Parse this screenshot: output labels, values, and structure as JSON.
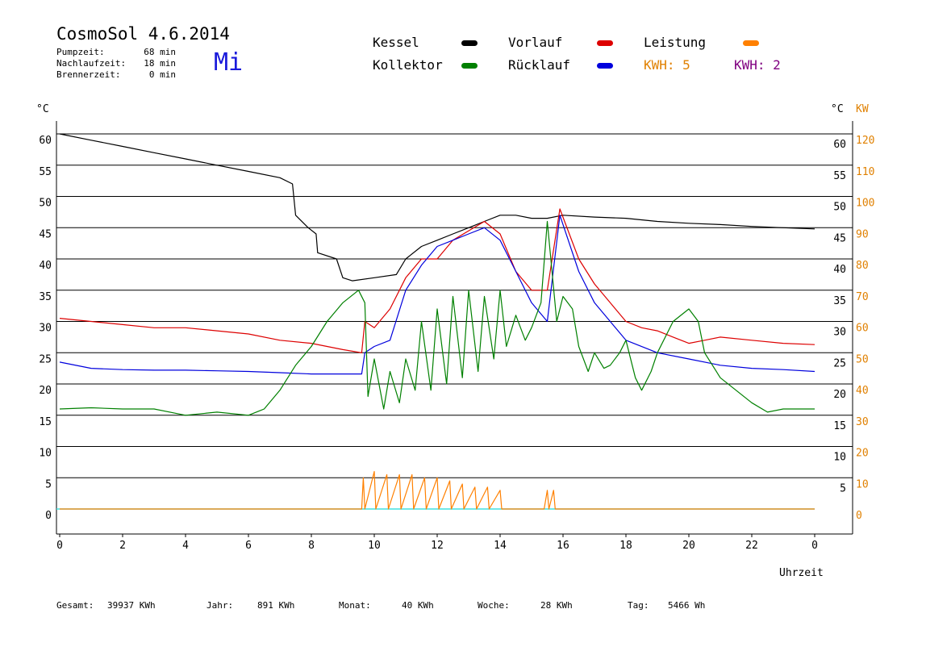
{
  "header": {
    "title": "CosmoSol 4.6.2014",
    "day": "Mi",
    "info": [
      {
        "label": "Pumpzeit:",
        "value": "68 min"
      },
      {
        "label": "Nachlaufzeit:",
        "value": "18 min"
      },
      {
        "label": "Brennerzeit:",
        "value": "0 min"
      }
    ]
  },
  "legend": {
    "kessel": {
      "label": "Kessel",
      "color": "#000000"
    },
    "vorlauf": {
      "label": "Vorlauf",
      "color": "#dd0000"
    },
    "leistung": {
      "label": "Leistung",
      "color": "#ff8000"
    },
    "kollektor": {
      "label": "Kollektor",
      "color": "#008000"
    },
    "ruecklauf": {
      "label": "Rücklauf",
      "color": "#0000dd"
    },
    "kwh1": {
      "label": "KWH: 5",
      "color": "#e08000"
    },
    "kwh2": {
      "label": "KWH: 2",
      "color": "#800080"
    }
  },
  "footer": {
    "gesamt": {
      "label": "Gesamt:",
      "value": "39937 KWh"
    },
    "jahr": {
      "label": "Jahr:",
      "value": "891 KWh"
    },
    "monat": {
      "label": "Monat:",
      "value": "40 KWh"
    },
    "woche": {
      "label": "Woche:",
      "value": "28 KWh"
    },
    "tag": {
      "label": "Tag:",
      "value": "5466 Wh"
    }
  },
  "chart_data": {
    "type": "line",
    "xlabel": "Uhrzeit",
    "ylabel_left": "°C",
    "ylabel_right_temp": "°C",
    "ylabel_right_power": "KW",
    "xlim": [
      0,
      24
    ],
    "ylim": [
      -4,
      65
    ],
    "x_ticks": [
      "0",
      "2",
      "4",
      "6",
      "8",
      "10",
      "12",
      "14",
      "16",
      "18",
      "20",
      "22",
      "0"
    ],
    "y_ticks_left": [
      "60",
      "55",
      "50",
      "45",
      "40",
      "35",
      "30",
      "25",
      "20",
      "15",
      "10",
      "5",
      "0"
    ],
    "y_ticks_right_temp": [
      "60",
      "55",
      "50",
      "45",
      "40",
      "35",
      "30",
      "25",
      "20",
      "15",
      "10",
      "5"
    ],
    "y_ticks_right_power": [
      "120",
      "110",
      "100",
      "90",
      "80",
      "70",
      "60",
      "50",
      "40",
      "30",
      "20",
      "10",
      "0"
    ],
    "gridlines_y": [
      60,
      55,
      50,
      45,
      40,
      35,
      30,
      25,
      20,
      15,
      10,
      5
    ],
    "zero_line_color": "#40e0e0",
    "series": [
      {
        "name": "Kessel",
        "color": "#000000",
        "points": [
          [
            0,
            60
          ],
          [
            1,
            59
          ],
          [
            2,
            58
          ],
          [
            3,
            57
          ],
          [
            4,
            56
          ],
          [
            5,
            55
          ],
          [
            6,
            54
          ],
          [
            7,
            53
          ],
          [
            7.4,
            52
          ],
          [
            7.5,
            47
          ],
          [
            7.9,
            45
          ],
          [
            8.15,
            44
          ],
          [
            8.2,
            41
          ],
          [
            8.8,
            40
          ],
          [
            9.0,
            37
          ],
          [
            9.3,
            36.5
          ],
          [
            10,
            37
          ],
          [
            10.7,
            37.5
          ],
          [
            11,
            40
          ],
          [
            11.5,
            42
          ],
          [
            12,
            43
          ],
          [
            12.5,
            44
          ],
          [
            13,
            45
          ],
          [
            13.5,
            46
          ],
          [
            14,
            47
          ],
          [
            14.5,
            47
          ],
          [
            15,
            46.5
          ],
          [
            15.5,
            46.5
          ],
          [
            16,
            47
          ],
          [
            17,
            46.7
          ],
          [
            18,
            46.5
          ],
          [
            19,
            46
          ],
          [
            20,
            45.7
          ],
          [
            21,
            45.5
          ],
          [
            22,
            45.2
          ],
          [
            23,
            45
          ],
          [
            24,
            44.8
          ]
        ]
      },
      {
        "name": "Vorlauf",
        "color": "#dd0000",
        "points": [
          [
            0,
            30.5
          ],
          [
            1,
            30
          ],
          [
            2,
            29.5
          ],
          [
            3,
            29
          ],
          [
            4,
            29
          ],
          [
            5,
            28.5
          ],
          [
            6,
            28
          ],
          [
            7,
            27
          ],
          [
            8,
            26.5
          ],
          [
            9,
            25.5
          ],
          [
            9.6,
            25
          ],
          [
            9.7,
            30
          ],
          [
            10,
            29
          ],
          [
            10.5,
            32
          ],
          [
            11,
            37
          ],
          [
            11.5,
            40
          ],
          [
            12,
            40
          ],
          [
            12.5,
            43
          ],
          [
            13,
            44.5
          ],
          [
            13.5,
            46
          ],
          [
            14,
            44
          ],
          [
            14.5,
            38
          ],
          [
            15,
            35
          ],
          [
            15.5,
            35
          ],
          [
            15.9,
            48
          ],
          [
            16.5,
            40
          ],
          [
            17,
            36
          ],
          [
            17.5,
            33
          ],
          [
            18,
            30
          ],
          [
            18.5,
            29
          ],
          [
            19,
            28.5
          ],
          [
            19.5,
            27.5
          ],
          [
            20,
            26.5
          ],
          [
            20.5,
            27
          ],
          [
            21,
            27.5
          ],
          [
            22,
            27
          ],
          [
            23,
            26.5
          ],
          [
            24,
            26.3
          ]
        ]
      },
      {
        "name": "Rücklauf",
        "color": "#0000dd",
        "points": [
          [
            0,
            23.5
          ],
          [
            1,
            22.5
          ],
          [
            2,
            22.3
          ],
          [
            3,
            22.2
          ],
          [
            4,
            22.2
          ],
          [
            5,
            22.1
          ],
          [
            6,
            22
          ],
          [
            7,
            21.8
          ],
          [
            8,
            21.6
          ],
          [
            9,
            21.6
          ],
          [
            9.6,
            21.6
          ],
          [
            9.7,
            25
          ],
          [
            10,
            26
          ],
          [
            10.5,
            27
          ],
          [
            11,
            35
          ],
          [
            11.5,
            39
          ],
          [
            12,
            42
          ],
          [
            12.5,
            43
          ],
          [
            13,
            44
          ],
          [
            13.5,
            45
          ],
          [
            14,
            43
          ],
          [
            14.5,
            38
          ],
          [
            15,
            33
          ],
          [
            15.5,
            30
          ],
          [
            15.9,
            47
          ],
          [
            16.5,
            38
          ],
          [
            17,
            33
          ],
          [
            17.5,
            30
          ],
          [
            18,
            27
          ],
          [
            19,
            25
          ],
          [
            20,
            24
          ],
          [
            21,
            23
          ],
          [
            22,
            22.5
          ],
          [
            23,
            22.3
          ],
          [
            24,
            22
          ]
        ]
      },
      {
        "name": "Kollektor",
        "color": "#008000",
        "points": [
          [
            0,
            16
          ],
          [
            1,
            16.2
          ],
          [
            2,
            16
          ],
          [
            3,
            16
          ],
          [
            4,
            15
          ],
          [
            5,
            15.5
          ],
          [
            6,
            15
          ],
          [
            6.5,
            16
          ],
          [
            7,
            19
          ],
          [
            7.5,
            23
          ],
          [
            8,
            26
          ],
          [
            8.5,
            30
          ],
          [
            9,
            33
          ],
          [
            9.5,
            35
          ],
          [
            9.7,
            33
          ],
          [
            9.8,
            18
          ],
          [
            10,
            24
          ],
          [
            10.3,
            16
          ],
          [
            10.5,
            22
          ],
          [
            10.8,
            17
          ],
          [
            11,
            24
          ],
          [
            11.3,
            19
          ],
          [
            11.5,
            30
          ],
          [
            11.8,
            19
          ],
          [
            12,
            32
          ],
          [
            12.3,
            20
          ],
          [
            12.5,
            34
          ],
          [
            12.8,
            21
          ],
          [
            13,
            35
          ],
          [
            13.3,
            22
          ],
          [
            13.5,
            34
          ],
          [
            13.8,
            24
          ],
          [
            14,
            35
          ],
          [
            14.2,
            26
          ],
          [
            14.5,
            31
          ],
          [
            14.8,
            27
          ],
          [
            15,
            29
          ],
          [
            15.3,
            33
          ],
          [
            15.5,
            46
          ],
          [
            15.8,
            30
          ],
          [
            16,
            34
          ],
          [
            16.3,
            32
          ],
          [
            16.5,
            26
          ],
          [
            16.8,
            22
          ],
          [
            17,
            25
          ],
          [
            17.3,
            22.5
          ],
          [
            17.5,
            23
          ],
          [
            17.8,
            25
          ],
          [
            18,
            27
          ],
          [
            18.3,
            21
          ],
          [
            18.5,
            19
          ],
          [
            18.8,
            22
          ],
          [
            19,
            25
          ],
          [
            19.5,
            30
          ],
          [
            20,
            32
          ],
          [
            20.3,
            30
          ],
          [
            20.5,
            25
          ],
          [
            21,
            21
          ],
          [
            21.5,
            19
          ],
          [
            22,
            17
          ],
          [
            22.5,
            15.5
          ],
          [
            23,
            16
          ],
          [
            24,
            16
          ]
        ]
      },
      {
        "name": "Leistung",
        "color": "#ff8000",
        "points": [
          [
            0,
            0
          ],
          [
            9.6,
            0
          ],
          [
            9.65,
            5
          ],
          [
            9.7,
            0
          ],
          [
            10,
            6
          ],
          [
            10.05,
            0
          ],
          [
            10.4,
            5.5
          ],
          [
            10.45,
            0
          ],
          [
            10.8,
            5.5
          ],
          [
            10.85,
            0
          ],
          [
            11.2,
            5.5
          ],
          [
            11.25,
            0
          ],
          [
            11.6,
            5
          ],
          [
            11.65,
            0
          ],
          [
            12,
            5
          ],
          [
            12.05,
            0
          ],
          [
            12.4,
            4.5
          ],
          [
            12.45,
            0
          ],
          [
            12.8,
            4
          ],
          [
            12.85,
            0
          ],
          [
            13.2,
            3.5
          ],
          [
            13.25,
            0
          ],
          [
            13.6,
            3.5
          ],
          [
            13.65,
            0
          ],
          [
            14,
            3
          ],
          [
            14.05,
            0
          ],
          [
            15.4,
            0
          ],
          [
            15.5,
            3
          ],
          [
            15.55,
            0
          ],
          [
            15.7,
            3
          ],
          [
            15.75,
            0
          ],
          [
            24,
            0
          ]
        ]
      }
    ],
    "kwh_totals": [
      5,
      2
    ]
  }
}
